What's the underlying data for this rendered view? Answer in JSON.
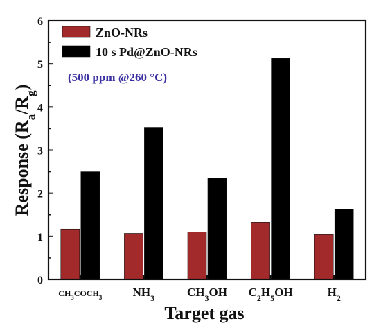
{
  "chart_data": {
    "type": "bar",
    "categories": [
      "CH3COCH3",
      "NH3",
      "CH3OH",
      "C2H5OH",
      "H2"
    ],
    "category_display": [
      [
        {
          "t": "CH"
        },
        {
          "t": "3",
          "sub": true
        },
        {
          "t": "COCH"
        },
        {
          "t": "3",
          "sub": true
        }
      ],
      [
        {
          "t": "NH"
        },
        {
          "t": "3",
          "sub": true
        }
      ],
      [
        {
          "t": "CH"
        },
        {
          "t": "3",
          "sub": true
        },
        {
          "t": "OH"
        }
      ],
      [
        {
          "t": "C"
        },
        {
          "t": "2",
          "sub": true
        },
        {
          "t": "H"
        },
        {
          "t": "5",
          "sub": true
        },
        {
          "t": "OH"
        }
      ],
      [
        {
          "t": "H"
        },
        {
          "t": "2",
          "sub": true
        }
      ]
    ],
    "series": [
      {
        "name": "ZnO-NRs",
        "color": "#a32a2a",
        "values": [
          1.17,
          1.07,
          1.1,
          1.33,
          1.04
        ]
      },
      {
        "name": "10 s Pd@ZnO-NRs",
        "color": "#000000",
        "values": [
          2.5,
          3.53,
          2.35,
          5.13,
          1.63
        ]
      }
    ],
    "xlabel": "Target gas",
    "ylabel": "Response (Ra/Rg)",
    "ylabel_parts": [
      {
        "t": "Response (R"
      },
      {
        "t": "a",
        "sub": true
      },
      {
        "t": "/R"
      },
      {
        "t": "g",
        "sub": true
      },
      {
        "t": ")"
      }
    ],
    "ylim": [
      0,
      6
    ],
    "yticks": [
      "0",
      "1",
      "2",
      "3",
      "4",
      "5",
      "6"
    ],
    "annotation": "(500 ppm @260 °C)",
    "legend_position": "top-left",
    "grid": false
  }
}
